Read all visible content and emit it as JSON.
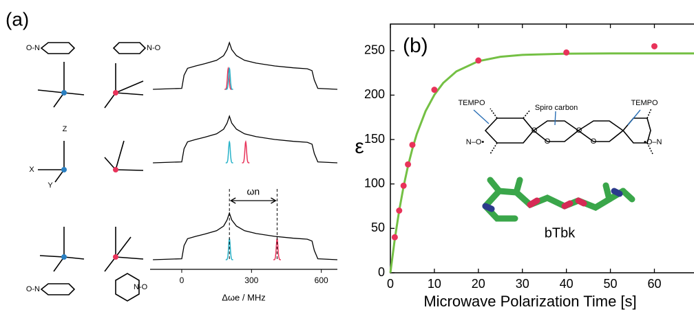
{
  "chart_data": [
    {
      "type": "spectra",
      "panel": "(a)",
      "xlabel": "Δωe / MHz",
      "xlim": [
        -136,
        669
      ],
      "xticks": [
        0,
        300,
        600
      ],
      "x": [
        -124,
        0,
        10,
        25,
        60,
        100,
        150,
        180,
        195,
        205,
        215,
        235,
        270,
        320,
        400,
        480,
        540,
        560,
        570,
        585,
        669
      ],
      "values": [
        0,
        0.02,
        0.3,
        0.45,
        0.5,
        0.55,
        0.62,
        0.72,
        0.85,
        1,
        0.85,
        0.72,
        0.62,
        0.56,
        0.5,
        0.46,
        0.44,
        0.4,
        0.2,
        0.02,
        0
      ],
      "color": "#000000",
      "rows": [
        {
          "peaks": [
            {
              "x": 200,
              "height": 0.45,
              "color": "#e8335a"
            },
            {
              "x": 205,
              "height": 0.45,
              "color": "#29b3c9"
            }
          ]
        },
        {
          "peaks": [
            {
              "x": 205,
              "height": 0.45,
              "color": "#29b3c9"
            },
            {
              "x": 275,
              "height": 0.45,
              "color": "#e8335a"
            }
          ]
        },
        {
          "peaks": [
            {
              "x": 205,
              "height": 0.45,
              "color": "#29b3c9"
            },
            {
              "x": 410,
              "height": 0.45,
              "color": "#e8335a"
            }
          ]
        }
      ],
      "measure": {
        "label": "ωn",
        "from": 205,
        "to": 410
      },
      "axis_labels": [
        "Z",
        "X",
        "Y"
      ],
      "ring_labels": [
        "O-N",
        "N-O",
        "O-N",
        "N-O"
      ]
    },
    {
      "type": "scatter",
      "panel": "(b)",
      "xlabel": "Microwave Polarization Time [s]",
      "ylabel": "ε",
      "xlim": [
        0,
        69
      ],
      "ylim": [
        0,
        280
      ],
      "xticks": [
        0,
        10,
        20,
        30,
        40,
        50,
        60
      ],
      "yticks": [
        0,
        50,
        100,
        150,
        200,
        250
      ],
      "x": [
        1,
        2,
        3,
        4,
        5,
        10,
        20,
        40,
        60
      ],
      "values": [
        40,
        70,
        98,
        122,
        144,
        206,
        239,
        248,
        255
      ],
      "color": "#e8335a",
      "fit": {
        "color": "#74c044",
        "x": [
          0,
          1,
          2,
          3,
          4,
          5,
          6,
          8,
          10,
          12,
          15,
          20,
          25,
          30,
          40,
          50,
          60,
          69
        ],
        "values": [
          0,
          37.9,
          70.0,
          97.2,
          120.2,
          139.7,
          156.1,
          181.9,
          200.3,
          213.6,
          226.7,
          238.2,
          243.2,
          245.3,
          246.7,
          246.9,
          247,
          247
        ]
      },
      "annotations": [
        "TEMPO",
        "Spiro carbon",
        "TEMPO",
        "bTbk",
        "N–O•",
        "•O–N",
        "O",
        "O",
        "O",
        "O"
      ]
    }
  ]
}
